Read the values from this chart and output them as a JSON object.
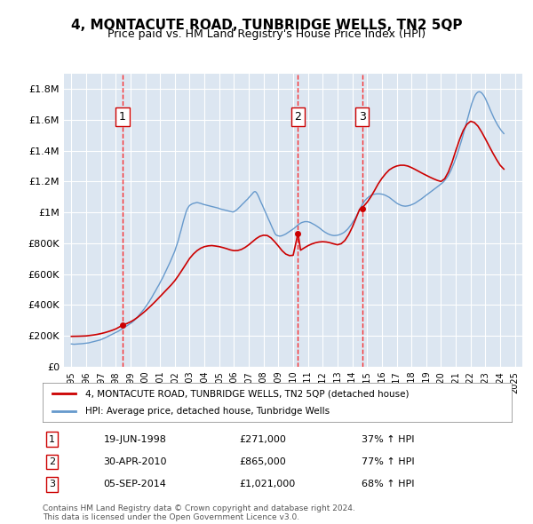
{
  "title": "4, MONTACUTE ROAD, TUNBRIDGE WELLS, TN2 5QP",
  "subtitle": "Price paid vs. HM Land Registry's House Price Index (HPI)",
  "legend_line1": "4, MONTACUTE ROAD, TUNBRIDGE WELLS, TN2 5QP (detached house)",
  "legend_line2": "HPI: Average price, detached house, Tunbridge Wells",
  "footer1": "Contains HM Land Registry data © Crown copyright and database right 2024.",
  "footer2": "This data is licensed under the Open Government Licence v3.0.",
  "sale_markers": [
    {
      "num": 1,
      "date": "19-JUN-1998",
      "price": 271000,
      "pct": "37%",
      "year": 1998.47
    },
    {
      "num": 2,
      "date": "30-APR-2010",
      "price": 865000,
      "pct": "77%",
      "year": 2010.33
    },
    {
      "num": 3,
      "date": "05-SEP-2014",
      "price": 1021000,
      "pct": "68%",
      "year": 2014.67
    }
  ],
  "hpi_color": "#6699cc",
  "price_color": "#cc0000",
  "background_color": "#dce6f1",
  "plot_bg": "#dce6f1",
  "ylim": [
    0,
    1900000
  ],
  "yticks": [
    0,
    200000,
    400000,
    600000,
    800000,
    1000000,
    1200000,
    1400000,
    1600000,
    1800000
  ],
  "ylabel_map": {
    "0": "£0",
    "200000": "£200K",
    "400000": "£400K",
    "600000": "£600K",
    "800000": "£800K",
    "1000000": "£1M",
    "1200000": "£1.2M",
    "1400000": "£1.4M",
    "1600000": "£1.6M",
    "1800000": "£1.8M"
  },
  "xlim": [
    1994.5,
    2025.5
  ],
  "hpi_data": {
    "years": [
      1995.0,
      1995.08,
      1995.17,
      1995.25,
      1995.33,
      1995.42,
      1995.5,
      1995.58,
      1995.67,
      1995.75,
      1995.83,
      1995.92,
      1996.0,
      1996.08,
      1996.17,
      1996.25,
      1996.33,
      1996.42,
      1996.5,
      1996.58,
      1996.67,
      1996.75,
      1996.83,
      1996.92,
      1997.0,
      1997.08,
      1997.17,
      1997.25,
      1997.33,
      1997.42,
      1997.5,
      1997.58,
      1997.67,
      1997.75,
      1997.83,
      1997.92,
      1998.0,
      1998.08,
      1998.17,
      1998.25,
      1998.33,
      1998.42,
      1998.5,
      1998.58,
      1998.67,
      1998.75,
      1998.83,
      1998.92,
      1999.0,
      1999.08,
      1999.17,
      1999.25,
      1999.33,
      1999.42,
      1999.5,
      1999.58,
      1999.67,
      1999.75,
      1999.83,
      1999.92,
      2000.0,
      2000.08,
      2000.17,
      2000.25,
      2000.33,
      2000.42,
      2000.5,
      2000.58,
      2000.67,
      2000.75,
      2000.83,
      2000.92,
      2001.0,
      2001.08,
      2001.17,
      2001.25,
      2001.33,
      2001.42,
      2001.5,
      2001.58,
      2001.67,
      2001.75,
      2001.83,
      2001.92,
      2002.0,
      2002.08,
      2002.17,
      2002.25,
      2002.33,
      2002.42,
      2002.5,
      2002.58,
      2002.67,
      2002.75,
      2002.83,
      2002.92,
      2003.0,
      2003.08,
      2003.17,
      2003.25,
      2003.33,
      2003.42,
      2003.5,
      2003.58,
      2003.67,
      2003.75,
      2003.83,
      2003.92,
      2004.0,
      2004.08,
      2004.17,
      2004.25,
      2004.33,
      2004.42,
      2004.5,
      2004.58,
      2004.67,
      2004.75,
      2004.83,
      2004.92,
      2005.0,
      2005.08,
      2005.17,
      2005.25,
      2005.33,
      2005.42,
      2005.5,
      2005.58,
      2005.67,
      2005.75,
      2005.83,
      2005.92,
      2006.0,
      2006.08,
      2006.17,
      2006.25,
      2006.33,
      2006.42,
      2006.5,
      2006.58,
      2006.67,
      2006.75,
      2006.83,
      2006.92,
      2007.0,
      2007.08,
      2007.17,
      2007.25,
      2007.33,
      2007.42,
      2007.5,
      2007.58,
      2007.67,
      2007.75,
      2007.83,
      2007.92,
      2008.0,
      2008.08,
      2008.17,
      2008.25,
      2008.33,
      2008.42,
      2008.5,
      2008.58,
      2008.67,
      2008.75,
      2008.83,
      2008.92,
      2009.0,
      2009.08,
      2009.17,
      2009.25,
      2009.33,
      2009.42,
      2009.5,
      2009.58,
      2009.67,
      2009.75,
      2009.83,
      2009.92,
      2010.0,
      2010.08,
      2010.17,
      2010.25,
      2010.33,
      2010.42,
      2010.5,
      2010.58,
      2010.67,
      2010.75,
      2010.83,
      2010.92,
      2011.0,
      2011.08,
      2011.17,
      2011.25,
      2011.33,
      2011.42,
      2011.5,
      2011.58,
      2011.67,
      2011.75,
      2011.83,
      2011.92,
      2012.0,
      2012.08,
      2012.17,
      2012.25,
      2012.33,
      2012.42,
      2012.5,
      2012.58,
      2012.67,
      2012.75,
      2012.83,
      2012.92,
      2013.0,
      2013.08,
      2013.17,
      2013.25,
      2013.33,
      2013.42,
      2013.5,
      2013.58,
      2013.67,
      2013.75,
      2013.83,
      2013.92,
      2014.0,
      2014.08,
      2014.17,
      2014.25,
      2014.33,
      2014.42,
      2014.5,
      2014.58,
      2014.67,
      2014.75,
      2014.83,
      2014.92,
      2015.0,
      2015.08,
      2015.17,
      2015.25,
      2015.33,
      2015.42,
      2015.5,
      2015.58,
      2015.67,
      2015.75,
      2015.83,
      2015.92,
      2016.0,
      2016.08,
      2016.17,
      2016.25,
      2016.33,
      2016.42,
      2016.5,
      2016.58,
      2016.67,
      2016.75,
      2016.83,
      2016.92,
      2017.0,
      2017.08,
      2017.17,
      2017.25,
      2017.33,
      2017.42,
      2017.5,
      2017.58,
      2017.67,
      2017.75,
      2017.83,
      2017.92,
      2018.0,
      2018.08,
      2018.17,
      2018.25,
      2018.33,
      2018.42,
      2018.5,
      2018.58,
      2018.67,
      2018.75,
      2018.83,
      2018.92,
      2019.0,
      2019.08,
      2019.17,
      2019.25,
      2019.33,
      2019.42,
      2019.5,
      2019.58,
      2019.67,
      2019.75,
      2019.83,
      2019.92,
      2020.0,
      2020.08,
      2020.17,
      2020.25,
      2020.33,
      2020.42,
      2020.5,
      2020.58,
      2020.67,
      2020.75,
      2020.83,
      2020.92,
      2021.0,
      2021.08,
      2021.17,
      2021.25,
      2021.33,
      2021.42,
      2021.5,
      2021.58,
      2021.67,
      2021.75,
      2021.83,
      2021.92,
      2022.0,
      2022.08,
      2022.17,
      2022.25,
      2022.33,
      2022.42,
      2022.5,
      2022.58,
      2022.67,
      2022.75,
      2022.83,
      2022.92,
      2023.0,
      2023.08,
      2023.17,
      2023.25,
      2023.33,
      2023.42,
      2023.5,
      2023.58,
      2023.67,
      2023.75,
      2023.83,
      2023.92,
      2024.0,
      2024.08,
      2024.17,
      2024.25
    ],
    "values": [
      148000,
      147000,
      146000,
      146500,
      147000,
      147500,
      148000,
      148500,
      149000,
      150000,
      151000,
      152000,
      153000,
      154000,
      155000,
      157000,
      159000,
      161000,
      163000,
      165000,
      167000,
      169000,
      171000,
      173000,
      176000,
      179000,
      182000,
      186000,
      190000,
      194000,
      198000,
      202000,
      206000,
      210000,
      214000,
      218000,
      222000,
      226000,
      230000,
      235000,
      240000,
      245000,
      250000,
      255000,
      260000,
      265000,
      270000,
      275000,
      280000,
      286000,
      293000,
      300000,
      308000,
      316000,
      325000,
      334000,
      344000,
      354000,
      364000,
      374000,
      385000,
      396000,
      408000,
      420000,
      433000,
      446000,
      460000,
      474000,
      488000,
      502000,
      516000,
      530000,
      545000,
      560000,
      575000,
      591000,
      607000,
      624000,
      641000,
      658000,
      676000,
      694000,
      712000,
      731000,
      750000,
      775000,
      800000,
      825000,
      855000,
      885000,
      915000,
      945000,
      975000,
      1000000,
      1020000,
      1035000,
      1045000,
      1050000,
      1055000,
      1058000,
      1060000,
      1062000,
      1064000,
      1062000,
      1060000,
      1058000,
      1055000,
      1052000,
      1050000,
      1048000,
      1046000,
      1044000,
      1042000,
      1040000,
      1038000,
      1036000,
      1034000,
      1032000,
      1030000,
      1028000,
      1025000,
      1022000,
      1020000,
      1018000,
      1016000,
      1014000,
      1012000,
      1010000,
      1008000,
      1006000,
      1004000,
      1002000,
      1005000,
      1010000,
      1015000,
      1022000,
      1030000,
      1038000,
      1046000,
      1054000,
      1062000,
      1070000,
      1078000,
      1086000,
      1095000,
      1104000,
      1113000,
      1122000,
      1131000,
      1135000,
      1130000,
      1118000,
      1100000,
      1082000,
      1064000,
      1046000,
      1028000,
      1010000,
      992000,
      974000,
      956000,
      938000,
      920000,
      902000,
      884000,
      866000,
      855000,
      850000,
      848000,
      846000,
      847000,
      849000,
      852000,
      856000,
      860000,
      865000,
      870000,
      875000,
      880000,
      886000,
      892000,
      898000,
      905000,
      912000,
      919000,
      925000,
      930000,
      934000,
      937000,
      939000,
      940000,
      940000,
      939000,
      937000,
      934000,
      930000,
      926000,
      922000,
      917000,
      912000,
      907000,
      901000,
      895000,
      888000,
      882000,
      876000,
      871000,
      866000,
      862000,
      858000,
      855000,
      853000,
      851000,
      850000,
      850000,
      851000,
      852000,
      854000,
      857000,
      860000,
      864000,
      869000,
      875000,
      882000,
      890000,
      899000,
      909000,
      920000,
      932000,
      944000,
      957000,
      971000,
      986000,
      1001000,
      1017000,
      1033000,
      1050000,
      1062000,
      1074000,
      1083000,
      1091000,
      1098000,
      1104000,
      1109000,
      1113000,
      1116000,
      1118000,
      1119000,
      1120000,
      1120000,
      1120000,
      1119000,
      1118000,
      1116000,
      1113000,
      1110000,
      1106000,
      1102000,
      1097000,
      1091000,
      1085000,
      1079000,
      1073000,
      1066000,
      1060000,
      1055000,
      1051000,
      1047000,
      1044000,
      1042000,
      1041000,
      1040000,
      1041000,
      1042000,
      1044000,
      1046000,
      1049000,
      1052000,
      1056000,
      1060000,
      1065000,
      1070000,
      1075000,
      1081000,
      1087000,
      1093000,
      1099000,
      1105000,
      1111000,
      1117000,
      1123000,
      1129000,
      1135000,
      1141000,
      1147000,
      1153000,
      1159000,
      1165000,
      1171000,
      1177000,
      1183000,
      1190000,
      1198000,
      1207000,
      1217000,
      1228000,
      1240000,
      1255000,
      1271000,
      1289000,
      1308000,
      1329000,
      1351000,
      1374000,
      1398000,
      1423000,
      1449000,
      1476000,
      1504000,
      1533000,
      1562000,
      1591000,
      1620000,
      1649000,
      1678000,
      1705000,
      1728000,
      1747000,
      1762000,
      1773000,
      1779000,
      1781000,
      1779000,
      1773000,
      1764000,
      1752000,
      1737000,
      1720000,
      1702000,
      1683000,
      1664000,
      1645000,
      1627000,
      1610000,
      1594000,
      1579000,
      1565000,
      1552000,
      1540000,
      1529000,
      1519000,
      1510000
    ]
  },
  "price_data": {
    "years": [
      1995.0,
      1995.25,
      1995.5,
      1995.75,
      1996.0,
      1996.25,
      1996.5,
      1996.75,
      1997.0,
      1997.25,
      1997.5,
      1997.75,
      1998.0,
      1998.25,
      1998.47,
      1998.75,
      1999.0,
      1999.25,
      1999.5,
      1999.75,
      2000.0,
      2000.25,
      2000.5,
      2000.75,
      2001.0,
      2001.25,
      2001.5,
      2001.75,
      2002.0,
      2002.25,
      2002.5,
      2002.75,
      2003.0,
      2003.25,
      2003.5,
      2003.75,
      2004.0,
      2004.25,
      2004.5,
      2004.75,
      2005.0,
      2005.25,
      2005.5,
      2005.75,
      2006.0,
      2006.25,
      2006.5,
      2006.75,
      2007.0,
      2007.25,
      2007.5,
      2007.75,
      2008.0,
      2008.25,
      2008.5,
      2008.75,
      2009.0,
      2009.25,
      2009.5,
      2009.75,
      2010.0,
      2010.33,
      2010.5,
      2010.75,
      2011.0,
      2011.25,
      2011.5,
      2011.75,
      2012.0,
      2012.25,
      2012.5,
      2012.75,
      2013.0,
      2013.25,
      2013.5,
      2013.75,
      2014.0,
      2014.25,
      2014.5,
      2014.67,
      2014.75,
      2015.0,
      2015.25,
      2015.5,
      2015.75,
      2016.0,
      2016.25,
      2016.5,
      2016.75,
      2017.0,
      2017.25,
      2017.5,
      2017.75,
      2018.0,
      2018.25,
      2018.5,
      2018.75,
      2019.0,
      2019.25,
      2019.5,
      2019.75,
      2020.0,
      2020.25,
      2020.5,
      2020.75,
      2021.0,
      2021.25,
      2021.5,
      2021.75,
      2022.0,
      2022.25,
      2022.5,
      2022.75,
      2023.0,
      2023.25,
      2023.5,
      2023.75,
      2024.0,
      2024.25
    ],
    "values": [
      197000,
      197500,
      198000,
      199000,
      200000,
      203000,
      206000,
      210000,
      215000,
      221000,
      228000,
      236000,
      245000,
      258000,
      271000,
      280000,
      291000,
      305000,
      322000,
      341000,
      361000,
      383000,
      406000,
      430000,
      455000,
      480000,
      505000,
      530000,
      558000,
      592000,
      628000,
      665000,
      702000,
      730000,
      752000,
      768000,
      778000,
      783000,
      785000,
      782000,
      778000,
      772000,
      765000,
      757000,
      752000,
      753000,
      760000,
      773000,
      790000,
      810000,
      830000,
      845000,
      852000,
      850000,
      835000,
      810000,
      782000,
      752000,
      730000,
      720000,
      722000,
      865000,
      755000,
      770000,
      784000,
      795000,
      803000,
      808000,
      810000,
      808000,
      803000,
      796000,
      790000,
      797000,
      818000,
      855000,
      904000,
      962000,
      1021000,
      1021000,
      1038000,
      1065000,
      1100000,
      1141000,
      1184000,
      1220000,
      1250000,
      1275000,
      1290000,
      1300000,
      1305000,
      1305000,
      1300000,
      1290000,
      1278000,
      1265000,
      1252000,
      1240000,
      1228000,
      1217000,
      1207000,
      1200000,
      1218000,
      1262000,
      1325000,
      1400000,
      1470000,
      1530000,
      1570000,
      1590000,
      1582000,
      1558000,
      1520000,
      1476000,
      1430000,
      1385000,
      1343000,
      1305000,
      1280000
    ]
  }
}
